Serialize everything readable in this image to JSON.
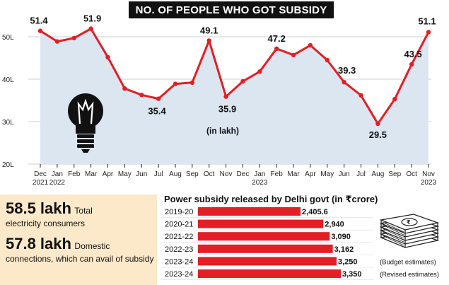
{
  "line_chart": {
    "title": "NO. OF PEOPLE WHO GOT SUBSIDY",
    "unit_note": "(in lakh)",
    "colors": {
      "line": "#e31e24",
      "area": "#dbe6f1",
      "grid": "#c8ccd0"
    },
    "icon": "light-bulb-icon"
  },
  "chart_data": [
    {
      "type": "line",
      "title": "NO. OF PEOPLE WHO GOT SUBSIDY",
      "ylabel": "(in lakh)",
      "ylim": [
        20,
        55
      ],
      "yticks": [
        20,
        30,
        40,
        50
      ],
      "ytick_labels": [
        "20L",
        "30L",
        "40L",
        "50L"
      ],
      "categories": [
        "Dec 2021",
        "Jan 2022",
        "Feb",
        "Mar",
        "Apr",
        "May",
        "Jun",
        "Jul",
        "Aug",
        "Sep",
        "Oct",
        "Nov",
        "Dec",
        "Jan 2023",
        "Feb",
        "Mar",
        "Apr",
        "May",
        "Jun",
        "Jul",
        "Aug",
        "Sep",
        "Oct",
        "Nov 2023"
      ],
      "tick_month": [
        "Dec",
        "Jan",
        "Feb",
        "Mar",
        "Apr",
        "May",
        "Jun",
        "Jul",
        "Aug",
        "Sep",
        "Oct",
        "Nov",
        "Dec",
        "Jan",
        "Feb",
        "Mar",
        "Apr",
        "May",
        "Jun",
        "Jul",
        "Aug",
        "Sep",
        "Oct",
        "Nov"
      ],
      "tick_year": [
        "2021",
        "2022",
        "",
        "",
        "",
        "",
        "",
        "",
        "",
        "",
        "",
        "",
        "",
        "2023",
        "",
        "",
        "",
        "",
        "",
        "",
        "",
        "",
        "",
        "2023"
      ],
      "values": [
        51.4,
        48.9,
        49.7,
        51.9,
        45.2,
        37.8,
        36.3,
        35.4,
        38.9,
        39.2,
        49.1,
        35.9,
        39.5,
        41.8,
        47.2,
        45.7,
        48.0,
        44.5,
        39.3,
        36.2,
        29.5,
        35.3,
        43.5,
        51.1
      ],
      "data_labels": [
        {
          "index": 0,
          "text": "51.4"
        },
        {
          "index": 3,
          "text": "51.9"
        },
        {
          "index": 7,
          "text": "35.4"
        },
        {
          "index": 10,
          "text": "49.1"
        },
        {
          "index": 11,
          "text": "35.9"
        },
        {
          "index": 14,
          "text": "47.2"
        },
        {
          "index": 18,
          "text": "39.3"
        },
        {
          "index": 20,
          "text": "29.5"
        },
        {
          "index": 22,
          "text": "43.5"
        },
        {
          "index": 23,
          "text": "51.1"
        }
      ],
      "grid": true
    },
    {
      "type": "bar",
      "title": "Power subsidy released by Delhi govt (in ₹crore)",
      "categories": [
        "2019-20",
        "2020-21",
        "2021-22",
        "2022-23",
        "2023-24",
        "2023-24"
      ],
      "values": [
        2405.6,
        2940,
        3090,
        3162,
        3250,
        3350
      ],
      "value_labels": [
        "2,405.6",
        "2,940",
        "3,090",
        "3,162",
        "3,250",
        "3,350"
      ],
      "annotations": [
        "",
        "",
        "",
        "",
        "(Budget estimates)",
        "(Revised estimates)"
      ]
    }
  ],
  "stats": [
    {
      "value": "58.5 lakh",
      "text_inline": "Total",
      "text_rest": "electricity consumers"
    },
    {
      "value": "57.8 lakh",
      "text_inline": "Domestic",
      "text_rest": "connections, which can avail of subsidy"
    }
  ],
  "bar_chart_meta": {
    "bar_color": "#e31e24",
    "icon": "money-stack-icon"
  }
}
